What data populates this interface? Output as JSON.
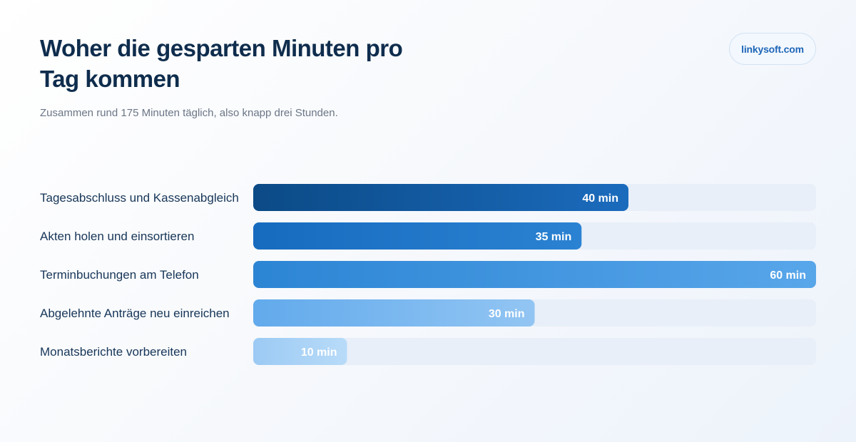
{
  "header": {
    "title": "Woher die gesparten Minuten pro Tag kommen",
    "subtitle": "Zusammen rund 175 Minuten täglich, also knapp drei Stunden.",
    "brand": "linkysoft.com"
  },
  "chart_data": {
    "type": "bar",
    "orientation": "horizontal",
    "categories": [
      "Tagesabschluss und Kassenabgleich",
      "Akten holen und einsortieren",
      "Terminbuchungen am Telefon",
      "Abgelehnte Anträge neu einreichen",
      "Monatsberichte vorbereiten"
    ],
    "values": [
      40,
      35,
      60,
      30,
      10
    ],
    "value_labels": [
      "40 min",
      "35 min",
      "60 min",
      "30 min",
      "10 min"
    ],
    "unit": "min",
    "xlim": [
      0,
      60
    ],
    "grid": false,
    "legend": "none",
    "title": "Woher die gesparten Minuten pro Tag kommen",
    "xlabel": "",
    "ylabel": ""
  },
  "colors": {
    "title": "#0f2d4d",
    "track": "#e8eff8",
    "bar_gradients": [
      [
        "#0b4a86",
        "#1b6bbd"
      ],
      [
        "#176bbf",
        "#2b82d2"
      ],
      [
        "#2c85d4",
        "#58a6ea"
      ],
      [
        "#62aaec",
        "#92c5f3"
      ],
      [
        "#9ccaf4",
        "#b8dbf8"
      ]
    ],
    "accent": "#1f66b8"
  }
}
